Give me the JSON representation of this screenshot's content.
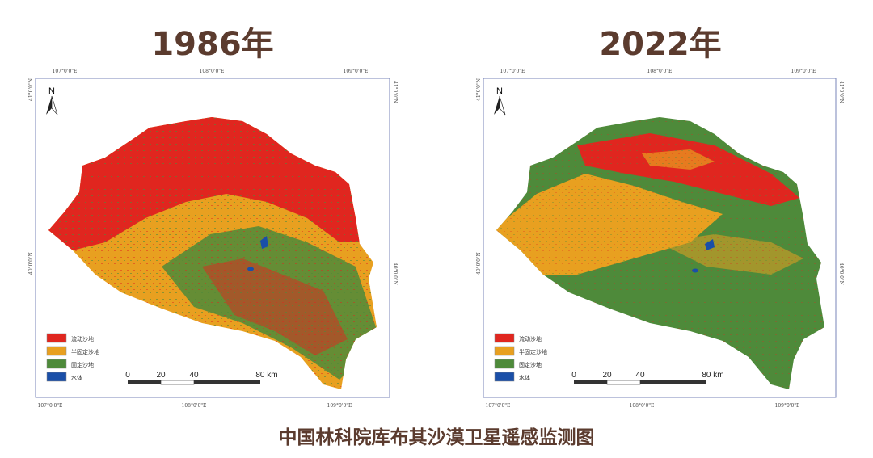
{
  "maps": [
    {
      "year_title": "1986年",
      "composition": "mostly-mobile-sand"
    },
    {
      "year_title": "2022年",
      "composition": "mostly-fixed-sand"
    }
  ],
  "coords": {
    "lon": [
      "107°0'0\"E",
      "108°0'0\"E",
      "109°0'0\"E"
    ],
    "lat": [
      "41°0'0\"N",
      "40°0'0\"N"
    ]
  },
  "north_label": "N",
  "legend": [
    {
      "label": "流动沙地",
      "color": "#e0261f"
    },
    {
      "label": "半固定沙地",
      "color": "#e8a020"
    },
    {
      "label": "固定沙地",
      "color": "#4e8a3a"
    },
    {
      "label": "水体",
      "color": "#1a4fa8"
    }
  ],
  "scale_bar": [
    "0",
    "20",
    "40",
    "80 km"
  ],
  "caption": "中国林科院库布其沙漠卫星遥感监测图",
  "colors": {
    "title": "#5b3b2e",
    "frame": "#7a86b8"
  }
}
